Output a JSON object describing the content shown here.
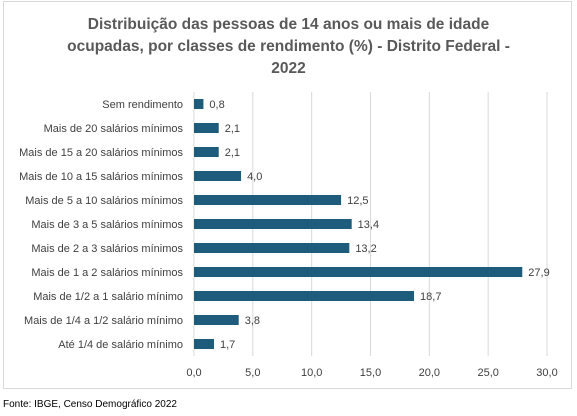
{
  "chart_data": {
    "type": "bar",
    "orientation": "horizontal",
    "title_lines": [
      "Distribuição das pessoas de 14 anos ou mais de idade",
      "ocupadas, por classes de rendimento (%) - Distrito Federal -",
      "2022"
    ],
    "categories": [
      "Sem rendimento",
      "Mais de 20 salários mínimos",
      "Mais de 15 a 20 salários mínimos",
      "Mais de 10 a 15 salários mínimos",
      "Mais de 5 a 10 salários mínimos",
      "Mais de 3 a 5 salários mínimos",
      "Mais de 2 a 3 salários mínimos",
      "Mais de 1 a 2 salários mínimos",
      "Mais de 1/2 a 1 salário mínimo",
      "Mais de 1/4 a 1/2 salário mínimo",
      "Até 1/4 de salário mínimo"
    ],
    "values": [
      0.8,
      2.1,
      2.1,
      4.0,
      12.5,
      13.4,
      13.2,
      27.9,
      18.7,
      3.8,
      1.7
    ],
    "value_labels": [
      "0,8",
      "2,1",
      "2,1",
      "4,0",
      "12,5",
      "13,4",
      "13,2",
      "27,9",
      "18,7",
      "3,8",
      "1,7"
    ],
    "xlim": [
      0,
      30
    ],
    "x_ticks": [
      0,
      5,
      10,
      15,
      20,
      25,
      30
    ],
    "x_tick_labels": [
      "0,0",
      "5,0",
      "10,0",
      "15,0",
      "20,0",
      "25,0",
      "30,0"
    ],
    "grid": "vertical",
    "bar_color": "#1f5b7a",
    "grid_color": "#d9d9d9"
  },
  "source": "Fonte: IBGE, Censo Demográfico 2022"
}
